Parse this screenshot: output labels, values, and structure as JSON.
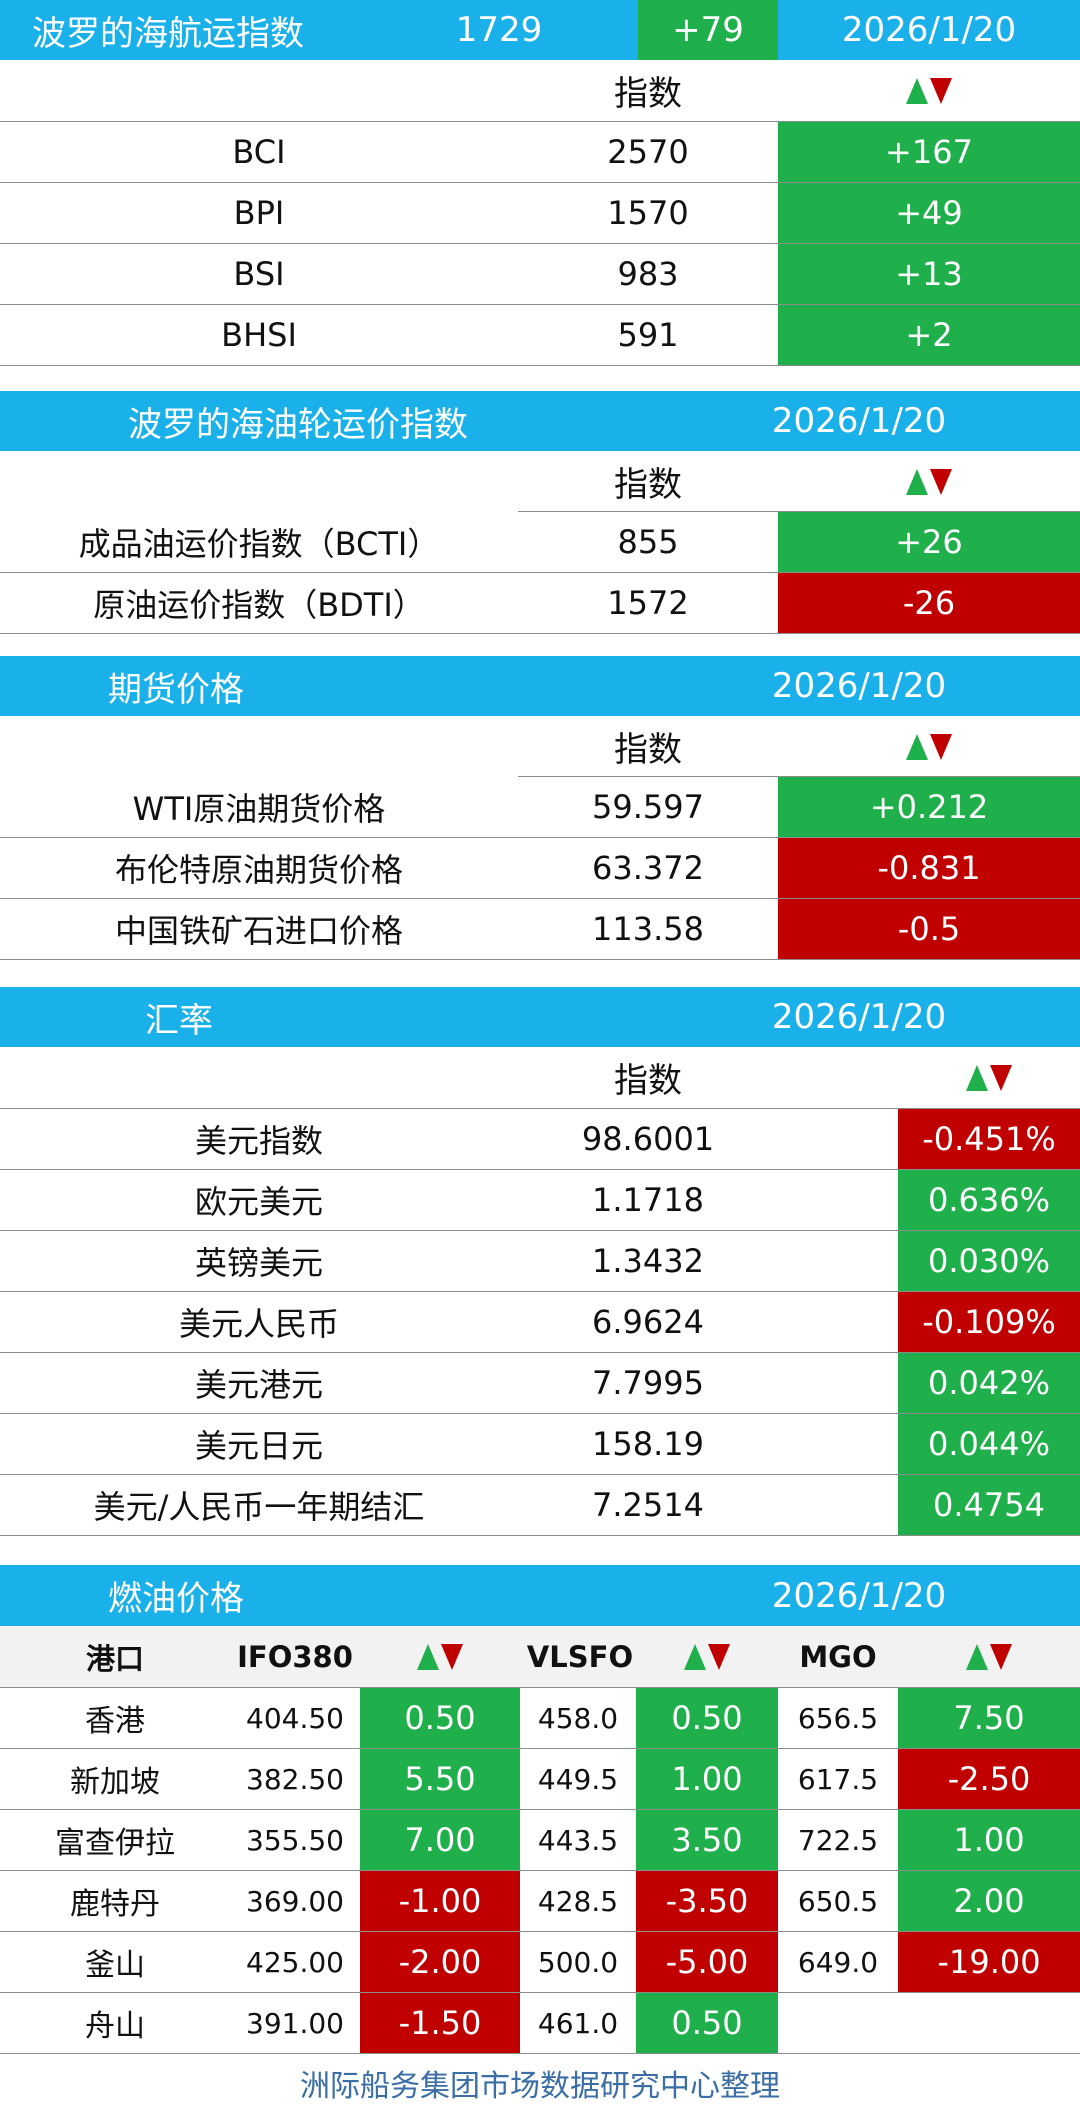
{
  "colors": {
    "header_blue": "#1ab0ea",
    "up_green": "#1faf4b",
    "down_red": "#c00000",
    "footer_text": "#3a6ea5"
  },
  "baltic_dry": {
    "title": "波罗的海航运指数",
    "value": "1729",
    "change": "+79",
    "date": "2026/1/20",
    "col_index": "指数",
    "rows": [
      {
        "name": "BCI",
        "value": "2570",
        "change": "+167",
        "dir": "up"
      },
      {
        "name": "BPI",
        "value": "1570",
        "change": "+49",
        "dir": "up"
      },
      {
        "name": "BSI",
        "value": "983",
        "change": "+13",
        "dir": "up"
      },
      {
        "name": "BHSI",
        "value": "591",
        "change": "+2",
        "dir": "up"
      }
    ]
  },
  "baltic_tanker": {
    "title": "波罗的海油轮运价指数",
    "date": "2026/1/20",
    "col_index": "指数",
    "rows": [
      {
        "name": "成品油运价指数（BCTI）",
        "value": "855",
        "change": "+26",
        "dir": "up"
      },
      {
        "name": "原油运价指数（BDTI）",
        "value": "1572",
        "change": "-26",
        "dir": "down"
      }
    ]
  },
  "futures": {
    "title": "期货价格",
    "date": "2026/1/20",
    "col_index": "指数",
    "rows": [
      {
        "name": "WTI原油期货价格",
        "value": "59.597",
        "change": "+0.212",
        "dir": "up"
      },
      {
        "name": "布伦特原油期货价格",
        "value": "63.372",
        "change": "-0.831",
        "dir": "down"
      },
      {
        "name": "中国铁矿石进口价格",
        "value": "113.58",
        "change": "-0.5",
        "dir": "down"
      }
    ]
  },
  "fx": {
    "title": "汇率",
    "date": "2026/1/20",
    "col_index": "指数",
    "rows": [
      {
        "name": "美元指数",
        "value": "98.6001",
        "change": "-0.451%",
        "dir": "down"
      },
      {
        "name": "欧元美元",
        "value": "1.1718",
        "change": "0.636%",
        "dir": "up"
      },
      {
        "name": "英镑美元",
        "value": "1.3432",
        "change": "0.030%",
        "dir": "up"
      },
      {
        "name": "美元人民币",
        "value": "6.9624",
        "change": "-0.109%",
        "dir": "down"
      },
      {
        "name": "美元港元",
        "value": "7.7995",
        "change": "0.042%",
        "dir": "up"
      },
      {
        "name": "美元日元",
        "value": "158.19",
        "change": "0.044%",
        "dir": "up"
      },
      {
        "name": "美元/人民币一年期结汇",
        "value": "7.2514",
        "change": "0.4754",
        "dir": "up"
      }
    ]
  },
  "fuel": {
    "title": "燃油价格",
    "date": "2026/1/20",
    "headers": {
      "port": "港口",
      "ifo": "IFO380",
      "vlsfo": "VLSFO",
      "mgo": "MGO"
    },
    "rows": [
      {
        "port": "香港",
        "ifo": "404.50",
        "ifo_chg": "0.50",
        "ifo_dir": "up",
        "vlsfo": "458.0",
        "vlsfo_chg": "0.50",
        "vlsfo_dir": "up",
        "mgo": "656.5",
        "mgo_chg": "7.50",
        "mgo_dir": "up"
      },
      {
        "port": "新加坡",
        "ifo": "382.50",
        "ifo_chg": "5.50",
        "ifo_dir": "up",
        "vlsfo": "449.5",
        "vlsfo_chg": "1.00",
        "vlsfo_dir": "up",
        "mgo": "617.5",
        "mgo_chg": "-2.50",
        "mgo_dir": "down"
      },
      {
        "port": "富查伊拉",
        "ifo": "355.50",
        "ifo_chg": "7.00",
        "ifo_dir": "up",
        "vlsfo": "443.5",
        "vlsfo_chg": "3.50",
        "vlsfo_dir": "up",
        "mgo": "722.5",
        "mgo_chg": "1.00",
        "mgo_dir": "up"
      },
      {
        "port": "鹿特丹",
        "ifo": "369.00",
        "ifo_chg": "-1.00",
        "ifo_dir": "down",
        "vlsfo": "428.5",
        "vlsfo_chg": "-3.50",
        "vlsfo_dir": "down",
        "mgo": "650.5",
        "mgo_chg": "2.00",
        "mgo_dir": "up"
      },
      {
        "port": "釜山",
        "ifo": "425.00",
        "ifo_chg": "-2.00",
        "ifo_dir": "down",
        "vlsfo": "500.0",
        "vlsfo_chg": "-5.00",
        "vlsfo_dir": "down",
        "mgo": "649.0",
        "mgo_chg": "-19.00",
        "mgo_dir": "down"
      },
      {
        "port": "舟山",
        "ifo": "391.00",
        "ifo_chg": "-1.50",
        "ifo_dir": "down",
        "vlsfo": "461.0",
        "vlsfo_chg": "0.50",
        "vlsfo_dir": "up",
        "mgo": "",
        "mgo_chg": "",
        "mgo_dir": ""
      }
    ]
  },
  "footer": "洲际船务集团市场数据研究中心整理"
}
